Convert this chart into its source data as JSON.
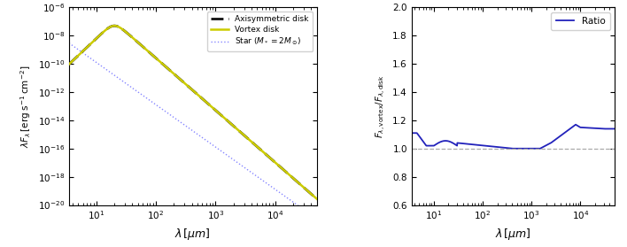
{
  "left_panel": {
    "xlabel": "$\\lambda\\,[\\mu m]$",
    "ylabel": "$\\lambda F_\\lambda\\,[\\mathrm{erg\\;s^{-1}\\,cm^{-2}}]$",
    "xlim": [
      3.5,
      50000
    ],
    "ylim": [
      1e-20,
      1e-06
    ],
    "legend_entries": [
      "Vortex disk",
      "Axisymmetric disk",
      "Star $(M_* = 2M_\\odot)$"
    ],
    "vortex_color": "#cccc00",
    "axisym_color": "#111111",
    "star_color": "#8888ff"
  },
  "right_panel": {
    "xlabel": "$\\lambda\\,[\\mu m]$",
    "ylabel": "$F_{\\lambda,\\mathrm{vortex}}/F_{\\lambda,\\mathrm{disk}}$",
    "xlim": [
      3.5,
      50000
    ],
    "ylim": [
      0.6,
      2.0
    ],
    "yticks": [
      0.6,
      0.8,
      1.0,
      1.2,
      1.4,
      1.6,
      1.8,
      2.0
    ],
    "legend_entries": [
      "Ratio"
    ],
    "ratio_color": "#2222bb",
    "hline_y": 1.0,
    "hline_color": "#aaaaaa",
    "hline_style": "--"
  }
}
